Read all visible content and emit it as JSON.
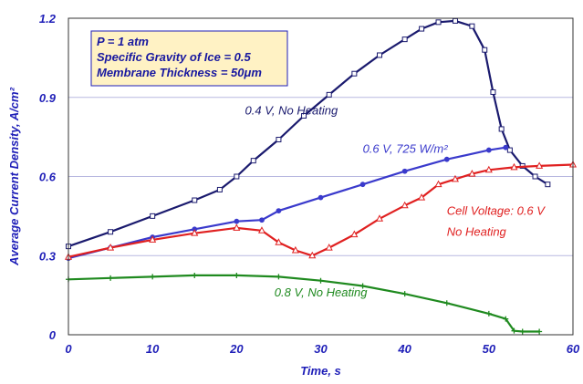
{
  "chart_data": {
    "type": "line",
    "xlabel": "Time, s",
    "ylabel": "Average Current Density, A/cm²",
    "xlim": [
      0,
      60
    ],
    "ylim": [
      0,
      1.2
    ],
    "xticks": [
      "0",
      "10",
      "20",
      "30",
      "40",
      "50",
      "60"
    ],
    "yticks": [
      "0",
      "0.3",
      "0.6",
      "0.9",
      "1.2"
    ],
    "grid": "horizontal",
    "info_box": [
      "P = 1 atm",
      "Specific Gravity of Ice = 0.5",
      "Membrane Thickness = 50μm"
    ],
    "series": [
      {
        "name": "0.4 V, No Heating",
        "color": "#1a1a6e",
        "marker": "square",
        "x": [
          0,
          5,
          10,
          15,
          18,
          20,
          22,
          25,
          28,
          31,
          34,
          37,
          40,
          42,
          44,
          46,
          48,
          49.5,
          50.5,
          51.5,
          52.5,
          54,
          55.5,
          57
        ],
        "y": [
          0.335,
          0.39,
          0.45,
          0.51,
          0.55,
          0.6,
          0.66,
          0.74,
          0.83,
          0.91,
          0.99,
          1.06,
          1.12,
          1.16,
          1.185,
          1.19,
          1.17,
          1.08,
          0.92,
          0.78,
          0.7,
          0.64,
          0.6,
          0.57
        ]
      },
      {
        "name": "0.6 V, 725 W/m²",
        "color": "#3a3acc",
        "marker": "circle",
        "x": [
          0,
          5,
          10,
          15,
          20,
          23,
          25,
          30,
          35,
          40,
          45,
          50,
          52
        ],
        "y": [
          0.29,
          0.33,
          0.37,
          0.4,
          0.43,
          0.435,
          0.47,
          0.52,
          0.57,
          0.62,
          0.665,
          0.7,
          0.71
        ]
      },
      {
        "name": "Cell Voltage: 0.6 V No Heating",
        "color": "#e02020",
        "marker": "triangle",
        "x": [
          0,
          5,
          10,
          15,
          20,
          23,
          25,
          27,
          29,
          31,
          34,
          37,
          40,
          42,
          44,
          46,
          48,
          50,
          53,
          56,
          60
        ],
        "y": [
          0.295,
          0.33,
          0.36,
          0.385,
          0.405,
          0.395,
          0.35,
          0.32,
          0.3,
          0.33,
          0.38,
          0.44,
          0.49,
          0.52,
          0.57,
          0.59,
          0.61,
          0.625,
          0.635,
          0.64,
          0.645
        ]
      },
      {
        "name": "0.8 V, No Heating",
        "color": "#1f8a1f",
        "marker": "plus",
        "x": [
          0,
          5,
          10,
          15,
          20,
          25,
          30,
          35,
          40,
          45,
          50,
          52,
          53,
          54,
          56
        ],
        "y": [
          0.21,
          0.215,
          0.22,
          0.225,
          0.225,
          0.22,
          0.205,
          0.185,
          0.155,
          0.12,
          0.08,
          0.06,
          0.015,
          0.012,
          0.012
        ]
      }
    ],
    "annotations": [
      {
        "text": "0.4 V, No Heating",
        "x": 21,
        "y": 0.835,
        "color": "#1a1a6e"
      },
      {
        "text": "0.6 V, 725 W/m²",
        "x": 35,
        "y": 0.69,
        "color": "#3a3acc"
      },
      {
        "text": "Cell Voltage: 0.6 V",
        "x": 45,
        "y": 0.455,
        "color": "#e02020"
      },
      {
        "text": "No Heating",
        "x": 45,
        "y": 0.375,
        "color": "#e02020"
      },
      {
        "text": "0.8 V, No Heating",
        "x": 24.5,
        "y": 0.145,
        "color": "#1f8a1f"
      }
    ]
  }
}
